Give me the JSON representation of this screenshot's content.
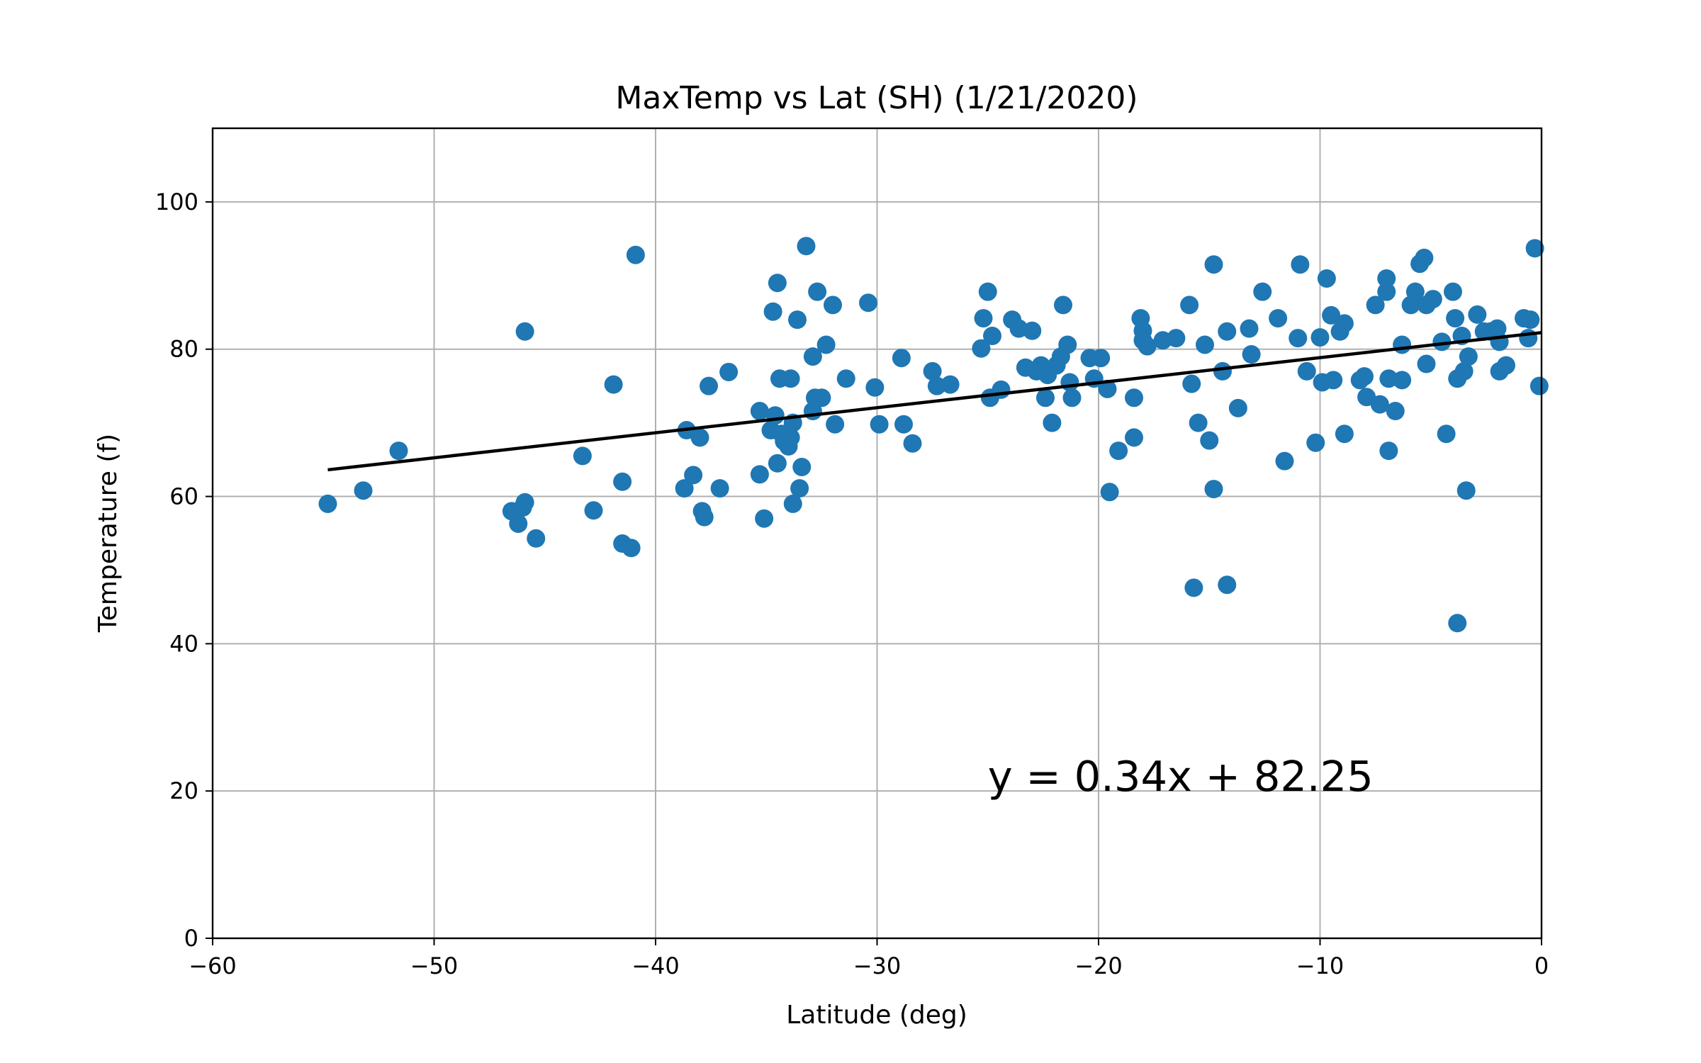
{
  "chart_data": {
    "type": "scatter",
    "title": "MaxTemp vs Lat (SH) (1/21/2020)",
    "xlabel": "Latitude (deg)",
    "ylabel": "Temperature (f)",
    "xlim": [
      -60,
      0
    ],
    "ylim": [
      0,
      110
    ],
    "xticks": [
      -60,
      -50,
      -40,
      -30,
      -20,
      -10,
      0
    ],
    "xtick_labels": [
      "−60",
      "−50",
      "−40",
      "−30",
      "−20",
      "−10",
      "0"
    ],
    "yticks": [
      0,
      20,
      40,
      60,
      80,
      100
    ],
    "ytick_labels": [
      "0",
      "20",
      "40",
      "60",
      "80",
      "100"
    ],
    "grid": true,
    "point_color": "#1f77b4",
    "line_color": "#000000",
    "regression": {
      "slope": 0.34,
      "intercept": 82.25,
      "x_range": [
        -54.8,
        0
      ]
    },
    "annotation": {
      "text": "y = 0.34x + 82.25",
      "x": -25,
      "y": 20
    },
    "points": [
      [
        -54.8,
        59.0
      ],
      [
        -53.2,
        60.8
      ],
      [
        -51.6,
        66.2
      ],
      [
        -46.5,
        58.0
      ],
      [
        -46.2,
        56.3
      ],
      [
        -46.0,
        58.5
      ],
      [
        -45.9,
        59.2
      ],
      [
        -45.9,
        82.4
      ],
      [
        -45.4,
        54.3
      ],
      [
        -43.3,
        65.5
      ],
      [
        -42.8,
        58.1
      ],
      [
        -41.9,
        75.2
      ],
      [
        -41.5,
        62.0
      ],
      [
        -41.5,
        53.6
      ],
      [
        -41.1,
        53.0
      ],
      [
        -40.9,
        92.8
      ],
      [
        -38.7,
        61.1
      ],
      [
        -38.6,
        69.0
      ],
      [
        -38.3,
        62.9
      ],
      [
        -38.0,
        68.0
      ],
      [
        -37.9,
        58.0
      ],
      [
        -37.8,
        57.2
      ],
      [
        -37.6,
        75.0
      ],
      [
        -37.1,
        61.1
      ],
      [
        -36.7,
        76.9
      ],
      [
        -35.3,
        71.6
      ],
      [
        -35.3,
        63.0
      ],
      [
        -35.1,
        57.0
      ],
      [
        -34.8,
        69.0
      ],
      [
        -34.7,
        85.1
      ],
      [
        -34.6,
        71.0
      ],
      [
        -34.5,
        89.0
      ],
      [
        -34.5,
        64.5
      ],
      [
        -34.4,
        76.0
      ],
      [
        -34.3,
        68.5
      ],
      [
        -34.2,
        67.5
      ],
      [
        -34.0,
        66.8
      ],
      [
        -33.9,
        76.0
      ],
      [
        -33.9,
        68.0
      ],
      [
        -33.8,
        70.0
      ],
      [
        -33.8,
        59.0
      ],
      [
        -33.6,
        84.0
      ],
      [
        -33.5,
        61.1
      ],
      [
        -33.4,
        64.0
      ],
      [
        -33.2,
        94.0
      ],
      [
        -32.9,
        71.6
      ],
      [
        -32.9,
        79.0
      ],
      [
        -32.8,
        73.4
      ],
      [
        -32.7,
        87.8
      ],
      [
        -32.5,
        73.4
      ],
      [
        -32.3,
        80.6
      ],
      [
        -32.0,
        86.0
      ],
      [
        -31.9,
        69.8
      ],
      [
        -31.4,
        76.0
      ],
      [
        -30.4,
        86.3
      ],
      [
        -30.1,
        74.8
      ],
      [
        -29.9,
        69.8
      ],
      [
        -28.9,
        78.8
      ],
      [
        -28.8,
        69.8
      ],
      [
        -28.4,
        67.2
      ],
      [
        -27.5,
        77.0
      ],
      [
        -27.3,
        75.0
      ],
      [
        -26.7,
        75.2
      ],
      [
        -25.3,
        80.1
      ],
      [
        -25.2,
        84.2
      ],
      [
        -25.0,
        87.8
      ],
      [
        -24.9,
        73.4
      ],
      [
        -24.8,
        81.8
      ],
      [
        -24.4,
        74.5
      ],
      [
        -23.9,
        84.0
      ],
      [
        -23.6,
        82.8
      ],
      [
        -23.3,
        77.5
      ],
      [
        -23.0,
        82.5
      ],
      [
        -22.8,
        77.0
      ],
      [
        -22.6,
        77.8
      ],
      [
        -22.4,
        73.4
      ],
      [
        -22.3,
        76.5
      ],
      [
        -22.1,
        70.0
      ],
      [
        -21.9,
        77.8
      ],
      [
        -21.7,
        79.0
      ],
      [
        -21.6,
        86.0
      ],
      [
        -21.4,
        80.6
      ],
      [
        -21.3,
        75.5
      ],
      [
        -21.2,
        73.4
      ],
      [
        -20.4,
        78.8
      ],
      [
        -20.2,
        76.0
      ],
      [
        -19.9,
        78.8
      ],
      [
        -19.6,
        74.6
      ],
      [
        -19.5,
        60.6
      ],
      [
        -19.1,
        66.2
      ],
      [
        -18.4,
        73.4
      ],
      [
        -18.4,
        68.0
      ],
      [
        -18.1,
        84.2
      ],
      [
        -18.0,
        82.5
      ],
      [
        -18.0,
        81.2
      ],
      [
        -17.8,
        80.4
      ],
      [
        -17.1,
        81.2
      ],
      [
        -16.5,
        81.5
      ],
      [
        -15.9,
        86.0
      ],
      [
        -15.8,
        75.3
      ],
      [
        -15.7,
        47.6
      ],
      [
        -15.5,
        70.0
      ],
      [
        -15.2,
        80.6
      ],
      [
        -15.0,
        67.6
      ],
      [
        -14.8,
        91.5
      ],
      [
        -14.8,
        61.0
      ],
      [
        -14.4,
        77.0
      ],
      [
        -14.2,
        82.4
      ],
      [
        -14.2,
        48.0
      ],
      [
        -13.7,
        72.0
      ],
      [
        -13.2,
        82.8
      ],
      [
        -13.1,
        79.3
      ],
      [
        -12.6,
        87.8
      ],
      [
        -11.9,
        84.2
      ],
      [
        -11.6,
        64.8
      ],
      [
        -11.0,
        81.5
      ],
      [
        -10.9,
        91.5
      ],
      [
        -10.6,
        77.0
      ],
      [
        -10.2,
        67.3
      ],
      [
        -10.0,
        81.6
      ],
      [
        -9.9,
        75.5
      ],
      [
        -9.7,
        89.6
      ],
      [
        -9.5,
        84.6
      ],
      [
        -9.4,
        75.8
      ],
      [
        -9.1,
        82.4
      ],
      [
        -8.9,
        68.5
      ],
      [
        -8.9,
        83.5
      ],
      [
        -8.2,
        75.8
      ],
      [
        -8.0,
        76.3
      ],
      [
        -7.9,
        73.5
      ],
      [
        -7.5,
        86.0
      ],
      [
        -7.3,
        72.5
      ],
      [
        -7.0,
        87.8
      ],
      [
        -7.0,
        89.6
      ],
      [
        -6.9,
        76.0
      ],
      [
        -6.9,
        66.2
      ],
      [
        -6.6,
        71.6
      ],
      [
        -6.3,
        75.8
      ],
      [
        -6.3,
        80.6
      ],
      [
        -5.9,
        86.0
      ],
      [
        -5.7,
        87.8
      ],
      [
        -5.5,
        91.6
      ],
      [
        -5.3,
        92.4
      ],
      [
        -5.2,
        86.0
      ],
      [
        -5.2,
        78.0
      ],
      [
        -4.9,
        86.8
      ],
      [
        -4.5,
        81.0
      ],
      [
        -4.3,
        68.5
      ],
      [
        -4.0,
        87.8
      ],
      [
        -3.9,
        84.2
      ],
      [
        -3.8,
        76.0
      ],
      [
        -3.8,
        42.8
      ],
      [
        -3.6,
        81.8
      ],
      [
        -3.5,
        77.0
      ],
      [
        -3.4,
        60.8
      ],
      [
        -3.3,
        79.0
      ],
      [
        -2.9,
        84.7
      ],
      [
        -2.6,
        82.4
      ],
      [
        -2.3,
        82.4
      ],
      [
        -2.0,
        82.8
      ],
      [
        -1.9,
        81.0
      ],
      [
        -1.9,
        77.0
      ],
      [
        -1.6,
        77.8
      ],
      [
        -0.8,
        84.2
      ],
      [
        -0.6,
        81.5
      ],
      [
        -0.5,
        84.0
      ],
      [
        -0.3,
        93.7
      ],
      [
        -0.1,
        75.0
      ]
    ]
  }
}
